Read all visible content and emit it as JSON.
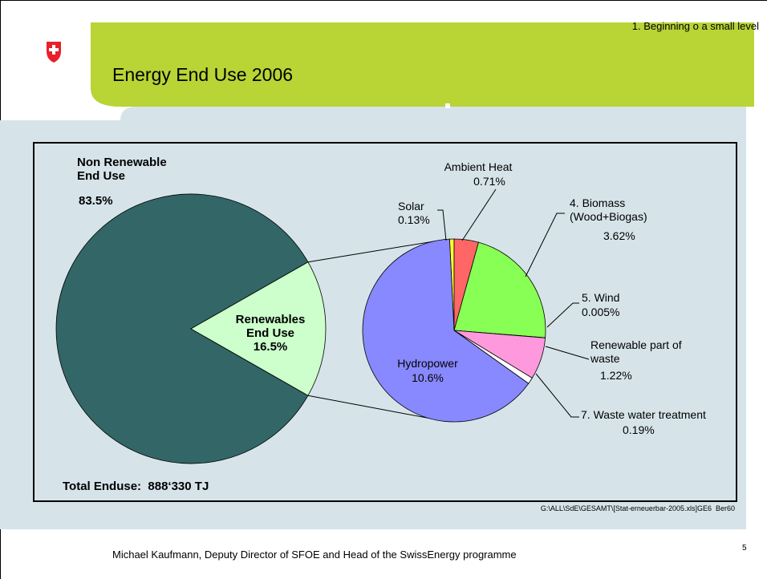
{
  "slide": {
    "note": "1. Beginning o a small level",
    "title": "Energy End Use 2006",
    "footer": "Michael Kaufmann, Deputy Director of SFOE and Head of the SwissEnergy programme",
    "page": "5"
  },
  "chart_data": {
    "type": "pie-of-pie",
    "annotation": "Total Enduse:  888‘330 TJ",
    "source": "G:\\ALL\\SdE\\GESAMT\\[Stat-erneuerbar-2005.xls]GE6  Ber60",
    "categories": [
      "Non Renewable\nEnd Use",
      "Renewables\nEnd Use"
    ],
    "values": [
      83.5,
      16.5
    ],
    "value_labels": [
      "83.5%",
      "16.5%"
    ],
    "colors": [
      "#336666",
      "#ccffcc"
    ],
    "breakout": {
      "categories": [
        "Solar",
        "Ambient Heat",
        "4. Biomass\n(Wood+Biogas)",
        "5. Wind",
        "Renewable part of\nwaste",
        "7. Waste water treatment",
        "Hydropower"
      ],
      "values": [
        0.13,
        0.71,
        3.62,
        0.005,
        1.22,
        0.19,
        10.6
      ],
      "value_labels": [
        "0.13%",
        "0.71%",
        "3.62%",
        "0.005%",
        "1.22%",
        "0.19%",
        "10.6%"
      ],
      "colors": [
        "#ffff33",
        "#ff6666",
        "#88ff55",
        "#ffcc99",
        "#ff99dd",
        "#ffffff",
        "#8888ff"
      ]
    }
  }
}
